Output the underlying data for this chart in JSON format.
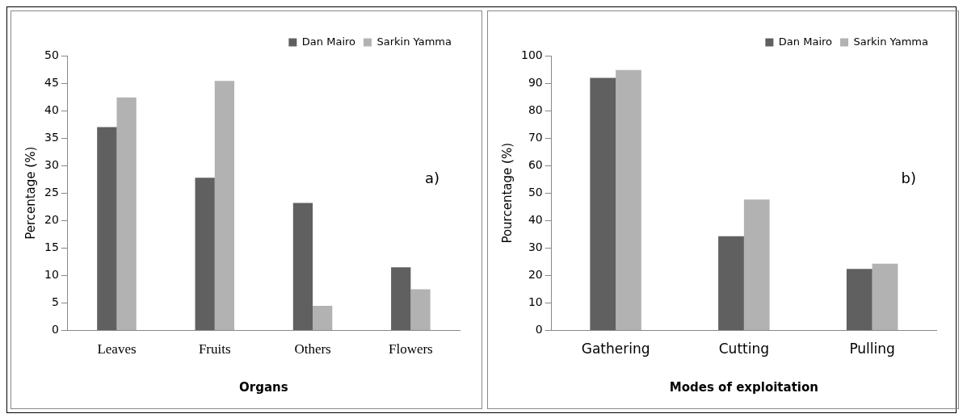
{
  "chart_data": [
    {
      "type": "bar",
      "xlabel": "Organs",
      "ylabel": "Percentage (%)",
      "categories": [
        "Leaves",
        "Fruits",
        "Others",
        "Flowers"
      ],
      "series": [
        {
          "name": "Dan Mairo",
          "color": "#606060",
          "values": [
            37.0,
            27.8,
            23.2,
            11.5
          ]
        },
        {
          "name": "Sarkin Yamma",
          "color": "#b2b2b2",
          "values": [
            42.4,
            45.4,
            4.5,
            7.5
          ]
        }
      ],
      "ylim": [
        0,
        50
      ],
      "yticks": [
        0,
        5,
        10,
        15,
        20,
        25,
        30,
        35,
        40,
        45,
        50
      ],
      "grid": false,
      "legend": "top right",
      "annotations": [
        "a)"
      ]
    },
    {
      "type": "bar",
      "xlabel": "Modes of exploitation",
      "ylabel": "Pourcentage (%)",
      "categories": [
        "Gathering",
        "Cutting",
        "Pulling"
      ],
      "series": [
        {
          "name": "Dan Mairo",
          "color": "#606060",
          "values": [
            91.9,
            34.3,
            22.4
          ]
        },
        {
          "name": "Sarkin Yamma",
          "color": "#b2b2b2",
          "values": [
            94.8,
            47.7,
            24.3
          ]
        }
      ],
      "ylim": [
        0,
        100
      ],
      "yticks": [
        0,
        10,
        20,
        30,
        40,
        50,
        60,
        70,
        80,
        90,
        100
      ],
      "grid": false,
      "legend": "top right",
      "annotations": [
        "b)"
      ]
    }
  ]
}
